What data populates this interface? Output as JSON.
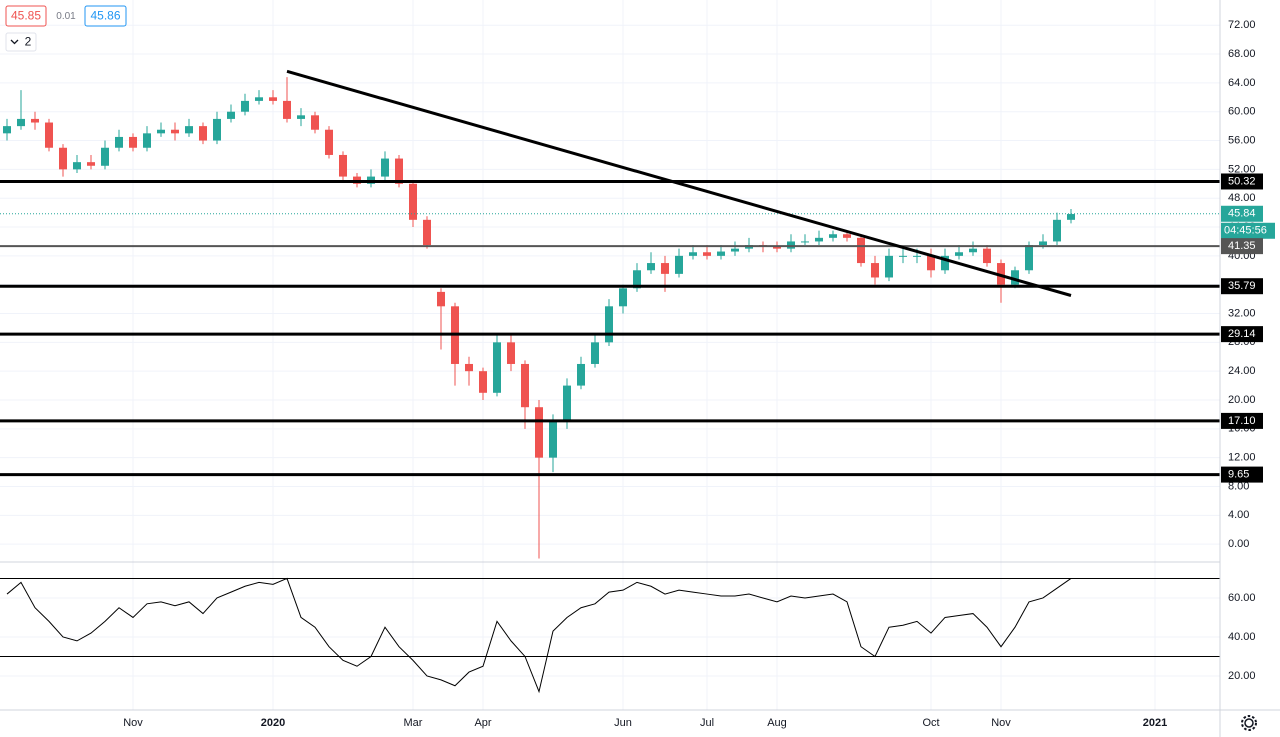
{
  "header": {
    "bid": "45.85",
    "spread": "0.01",
    "ask": "45.86",
    "indicator_count": "2"
  },
  "chart_data": [
    {
      "type": "candlestick",
      "categories": [
        null,
        null,
        null,
        null,
        null,
        null,
        null,
        null,
        null,
        "Nov",
        null,
        null,
        null,
        null,
        null,
        null,
        null,
        null,
        null,
        "2020",
        null,
        null,
        null,
        null,
        null,
        null,
        null,
        null,
        null,
        "Mar",
        null,
        null,
        null,
        null,
        "Apr",
        null,
        null,
        null,
        null,
        null,
        null,
        null,
        null,
        null,
        "Jun",
        null,
        null,
        null,
        null,
        null,
        "Jul",
        null,
        null,
        null,
        null,
        "Aug",
        null,
        null,
        null,
        null,
        null,
        null,
        null,
        null,
        null,
        null,
        "Oct",
        null,
        null,
        null,
        null,
        "Nov",
        null,
        null,
        null,
        null,
        null,
        null,
        null,
        null,
        null,
        null,
        "2021",
        null,
        null,
        null,
        null
      ],
      "open": [
        57,
        58,
        59,
        58.5,
        55,
        52,
        53,
        52.5,
        55,
        56.5,
        55,
        57,
        57.5,
        57,
        58,
        56,
        59,
        60,
        61.5,
        62,
        61.5,
        59,
        59.5,
        57.5,
        54,
        51,
        50,
        51,
        53.5,
        50,
        45,
        35,
        33,
        25,
        24,
        21,
        28,
        25,
        19,
        12,
        17,
        22,
        25,
        28,
        33,
        35.5,
        38,
        39,
        37.5,
        40,
        40.5,
        40,
        40.6,
        41,
        41.5,
        41.3,
        41,
        42,
        42,
        42.5,
        43,
        42.5,
        39,
        37,
        40,
        40,
        40,
        38,
        40,
        40.5,
        41,
        39,
        36,
        38,
        41.5,
        42,
        45,
        null,
        null,
        null,
        null,
        null,
        null,
        null,
        null,
        null,
        null
      ],
      "high": [
        59,
        63,
        60,
        59,
        55.5,
        54,
        54,
        56,
        57.5,
        57,
        58,
        58.5,
        58.5,
        59,
        58.5,
        60,
        61,
        62.5,
        63,
        63,
        64.8,
        60.5,
        60,
        58,
        54.5,
        51.5,
        52,
        54.5,
        54,
        50.5,
        45.5,
        35.5,
        33.5,
        26,
        24.5,
        29,
        29,
        25.5,
        20,
        18,
        23,
        26,
        29,
        34,
        36,
        39,
        40.5,
        40,
        41,
        41.5,
        41.5,
        41.5,
        42,
        42.5,
        42,
        42,
        43,
        43,
        43.5,
        43.5,
        43.5,
        43,
        40,
        41,
        41,
        41,
        41,
        41,
        41.5,
        42,
        41.5,
        39.5,
        38.5,
        42,
        43,
        46,
        46.5,
        null,
        null,
        null,
        null,
        null,
        null,
        null,
        null,
        null,
        null
      ],
      "low": [
        56,
        57.5,
        57.5,
        54.5,
        51,
        51.5,
        52,
        52,
        54.5,
        54.5,
        54.5,
        56.5,
        56,
        56.5,
        55.5,
        55.5,
        58.5,
        59.5,
        61,
        61,
        58.5,
        58,
        57,
        53.5,
        50.5,
        49.5,
        49.5,
        50.5,
        49.5,
        44,
        41,
        27,
        22,
        22,
        20,
        20.5,
        24,
        16,
        -2,
        10,
        16,
        21.5,
        24.5,
        27.5,
        32,
        35,
        37.5,
        35,
        37,
        39.5,
        39.5,
        39.5,
        40,
        40.5,
        40.5,
        40.5,
        40.5,
        41.5,
        41.5,
        42,
        42,
        38.5,
        36,
        36.5,
        39,
        39,
        37,
        37.5,
        39.5,
        40,
        38.5,
        33.5,
        35.5,
        37.5,
        41,
        41.5,
        44.5,
        null,
        null,
        null,
        null,
        null,
        null,
        null,
        null,
        null,
        null
      ],
      "close": [
        58,
        59,
        58.5,
        55,
        52,
        53,
        52.5,
        55,
        56.5,
        55,
        57,
        57.5,
        57,
        58,
        56,
        59,
        60,
        61.5,
        62,
        61.5,
        59,
        59.5,
        57.5,
        54,
        51,
        50,
        51,
        53.5,
        50,
        45,
        41.5,
        33,
        25,
        24,
        21,
        28,
        25,
        19,
        12,
        17,
        22,
        25,
        28,
        33,
        35.5,
        38,
        39,
        37.5,
        40,
        40.5,
        40,
        40.6,
        41,
        41.5,
        41.3,
        41,
        42,
        42,
        42.5,
        43,
        42.5,
        39,
        37,
        40,
        40,
        40,
        38,
        40,
        40.5,
        41,
        39,
        36,
        38,
        41.5,
        42,
        45,
        45.8,
        null,
        null,
        null,
        null,
        null,
        null,
        null,
        null,
        null,
        null
      ],
      "up_color": "#26a69a",
      "down_color": "#ef5350",
      "ylim": [
        -2.2,
        75.5
      ],
      "yticks": [
        {
          "value": 0,
          "label": "0.00"
        },
        {
          "value": 4,
          "label": "4.00"
        },
        {
          "value": 8,
          "label": "8.00"
        },
        {
          "value": 12,
          "label": "12.00"
        },
        {
          "value": 16,
          "label": "16.00"
        },
        {
          "value": 20,
          "label": "20.00"
        },
        {
          "value": 24,
          "label": "24.00"
        },
        {
          "value": 28,
          "label": "28.00"
        },
        {
          "value": 32,
          "label": "32.00"
        },
        {
          "value": 36,
          "label": "36.00"
        },
        {
          "value": 40,
          "label": "40.00"
        },
        {
          "value": 44,
          "label": "44.00"
        },
        {
          "value": 48,
          "label": "48.00"
        },
        {
          "value": 52,
          "label": "52.00"
        },
        {
          "value": 56,
          "label": "56.00"
        },
        {
          "value": 60,
          "label": "60.00"
        },
        {
          "value": 64,
          "label": "64.00"
        },
        {
          "value": 68,
          "label": "68.00"
        },
        {
          "value": 72,
          "label": "72.00"
        }
      ],
      "levels": [
        {
          "value": 50.32,
          "color": "#000000"
        },
        {
          "value": 41.35,
          "color": "#555555"
        },
        {
          "value": 35.79,
          "color": "#000000"
        },
        {
          "value": 29.14,
          "color": "#000000"
        },
        {
          "value": 17.1,
          "label": "17.10",
          "color": "#000000"
        },
        {
          "value": 9.65,
          "color": "#000000"
        }
      ],
      "trendline": {
        "from": {
          "index": 20,
          "value": 65.6
        },
        "to": {
          "index": 76,
          "value": 34.5
        }
      },
      "last_price": 45.84,
      "last_price_color": "#26a69a",
      "countdown": "04:45:56",
      "grid": true
    },
    {
      "type": "line",
      "series": [
        {
          "color": "#000000",
          "values": [
            62,
            68,
            55,
            48,
            40,
            38,
            42,
            48,
            55,
            50,
            57,
            58,
            56,
            58,
            52,
            60,
            63,
            66,
            68,
            67,
            70,
            50,
            45,
            35,
            28,
            25,
            30,
            45,
            35,
            28,
            20,
            18,
            15,
            22,
            25,
            48,
            38,
            30,
            12,
            43,
            50,
            55,
            57,
            63,
            64,
            68,
            66,
            62,
            64,
            63,
            62,
            61,
            61,
            62,
            60,
            58,
            61,
            60,
            61,
            62,
            58,
            35,
            30,
            45,
            46,
            48,
            42,
            50,
            51,
            52,
            45,
            35,
            45,
            58,
            60,
            65,
            70,
            null,
            null,
            null,
            null,
            null,
            null,
            null,
            null,
            null,
            null
          ]
        }
      ],
      "ylim": [
        2.56,
        76.9
      ],
      "yticks": [
        {
          "value": 20,
          "label": "20.00"
        },
        {
          "value": 40,
          "label": "40.00"
        },
        {
          "value": 60,
          "label": "60.00"
        }
      ],
      "bands": [
        70,
        30
      ]
    }
  ]
}
